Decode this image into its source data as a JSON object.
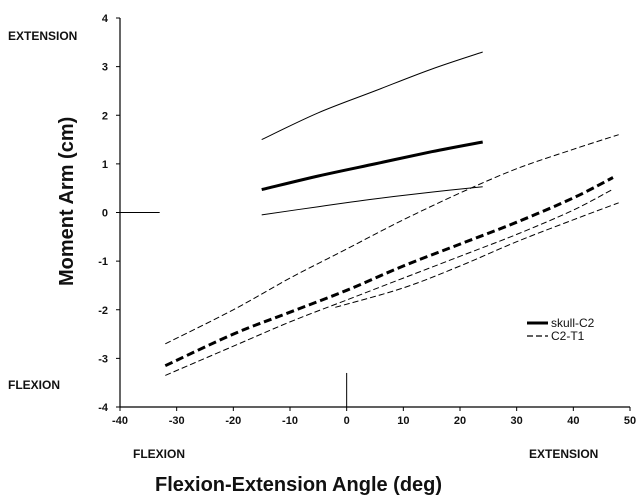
{
  "chart_data": {
    "type": "line",
    "title": "",
    "xlabel": "Flexion-Extension Angle (deg)",
    "ylabel": "Moment Arm (cm)",
    "xlim": [
      -40,
      50
    ],
    "ylim": [
      -4,
      4
    ],
    "xticks": [
      -40,
      -30,
      -20,
      -10,
      0,
      10,
      20,
      30,
      40,
      50
    ],
    "yticks": [
      -4,
      -3,
      -2,
      -1,
      0,
      1,
      2,
      3,
      4
    ],
    "grid": false,
    "legend_position": "bottom-right",
    "annotations": {
      "y_top": "EXTENSION",
      "y_bottom": "FLEXION",
      "x_left": "FLEXION",
      "x_right": "EXTENSION"
    },
    "legend": [
      {
        "label": "skull-C2",
        "style": "solid"
      },
      {
        "label": "C2-T1",
        "style": "dashed"
      }
    ],
    "series": [
      {
        "group": "skull-C2",
        "role": "upper",
        "style": "solid",
        "width": "thin",
        "x": [
          -15,
          -5,
          5,
          15,
          24
        ],
        "y": [
          1.5,
          2.05,
          2.5,
          2.95,
          3.3
        ]
      },
      {
        "group": "skull-C2",
        "role": "mean",
        "style": "solid",
        "width": "thick",
        "x": [
          -15,
          -5,
          5,
          15,
          24
        ],
        "y": [
          0.47,
          0.75,
          1.0,
          1.25,
          1.45
        ]
      },
      {
        "group": "skull-C2",
        "role": "lower",
        "style": "solid",
        "width": "thin",
        "x": [
          -15,
          -5,
          5,
          15,
          24
        ],
        "y": [
          -0.05,
          0.12,
          0.28,
          0.42,
          0.53
        ]
      },
      {
        "group": "C2-T1",
        "role": "upper",
        "style": "dashed",
        "width": "thin",
        "x": [
          -32,
          -20,
          -10,
          0,
          10,
          20,
          30,
          40,
          48
        ],
        "y": [
          -2.7,
          -2.0,
          -1.35,
          -0.75,
          -0.15,
          0.4,
          0.9,
          1.3,
          1.6
        ]
      },
      {
        "group": "C2-T1",
        "role": "mean",
        "style": "dashed",
        "width": "thick",
        "x": [
          -32,
          -20,
          -10,
          0,
          10,
          20,
          30,
          40,
          47
        ],
        "y": [
          -3.15,
          -2.5,
          -2.05,
          -1.6,
          -1.1,
          -0.65,
          -0.2,
          0.3,
          0.72
        ]
      },
      {
        "group": "C2-T1",
        "role": "lower",
        "style": "dashed",
        "width": "thin",
        "x": [
          -32,
          -20,
          -10,
          0,
          10,
          20,
          30,
          40,
          47
        ],
        "y": [
          -3.35,
          -2.75,
          -2.25,
          -1.8,
          -1.35,
          -0.9,
          -0.45,
          0.05,
          0.48
        ]
      },
      {
        "group": "C2-T1",
        "role": "lowest",
        "style": "dashed",
        "width": "thin",
        "x": [
          -2,
          10,
          20,
          30,
          40,
          48
        ],
        "y": [
          -1.95,
          -1.55,
          -1.1,
          -0.6,
          -0.15,
          0.2
        ]
      }
    ],
    "reference_marks": [
      {
        "type": "horizontal",
        "x_from": -40,
        "x_to": -33,
        "y": 0
      },
      {
        "type": "vertical",
        "x": 0,
        "y_from": -4,
        "y_to": -3.3
      }
    ]
  }
}
